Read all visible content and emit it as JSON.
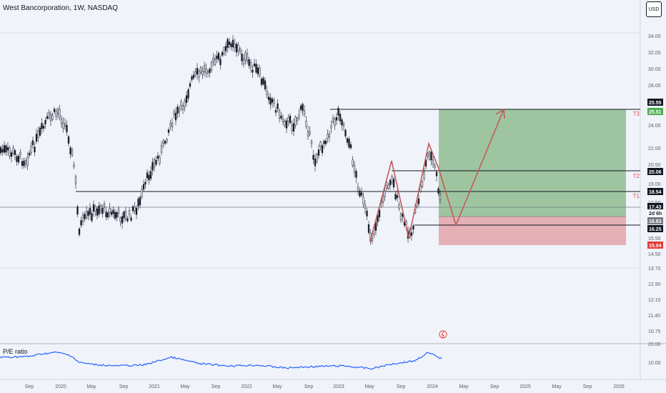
{
  "header": {
    "symbol_title": "West Bancorporation, 1W, NASDAQ",
    "currency_button": "USD"
  },
  "indicator": {
    "label": "P/E ratio",
    "axis_labels": [
      "20.00",
      "10.00"
    ]
  },
  "price_axis": {
    "labels": [
      "34.00",
      "32.00",
      "30.00",
      "28.00",
      "26.00",
      "24.00",
      "22.00",
      "20.50",
      "19.00",
      "17.50",
      "16.00",
      "15.50",
      "14.50",
      "13.70",
      "12.90",
      "12.10",
      "11.40",
      "10.75"
    ],
    "badges": [
      {
        "text": "25.55",
        "bg": "#131722",
        "fg": "#ffffff"
      },
      {
        "text": "25.51",
        "bg": "#4caf50",
        "fg": "#ffffff"
      },
      {
        "text": "20.06",
        "bg": "#131722",
        "fg": "#ffffff"
      },
      {
        "text": "18.54",
        "bg": "#131722",
        "fg": "#ffffff"
      },
      {
        "text": "17.43",
        "bg": "#131722",
        "fg": "#ffffff"
      },
      {
        "text": "2d 6h",
        "bg": "#ffffff",
        "fg": "#131722"
      },
      {
        "text": "16.83",
        "bg": "#787b86",
        "fg": "#ffffff"
      },
      {
        "text": "16.25",
        "bg": "#131722",
        "fg": "#ffffff"
      },
      {
        "text": "15.04",
        "bg": "#e53935",
        "fg": "#ffffff"
      }
    ]
  },
  "time_axis": {
    "labels": [
      "Sep",
      "2020",
      "May",
      "Sep",
      "2021",
      "May",
      "Sep",
      "2022",
      "May",
      "Sep",
      "2023",
      "May",
      "Sep",
      "2024",
      "May",
      "Sep",
      "2025",
      "May",
      "Sep",
      "2026"
    ]
  },
  "targets": [
    "T3",
    "T2",
    "T1"
  ],
  "colors": {
    "background": "#f0f3fa",
    "candles": "#131722",
    "profit_zone": "#8fbc8f",
    "loss_zone": "#e2a2a8",
    "projection": "#c25b5b",
    "indicator_line": "#2962ff"
  },
  "icons": {
    "alert": "lightning-alert-icon"
  }
}
